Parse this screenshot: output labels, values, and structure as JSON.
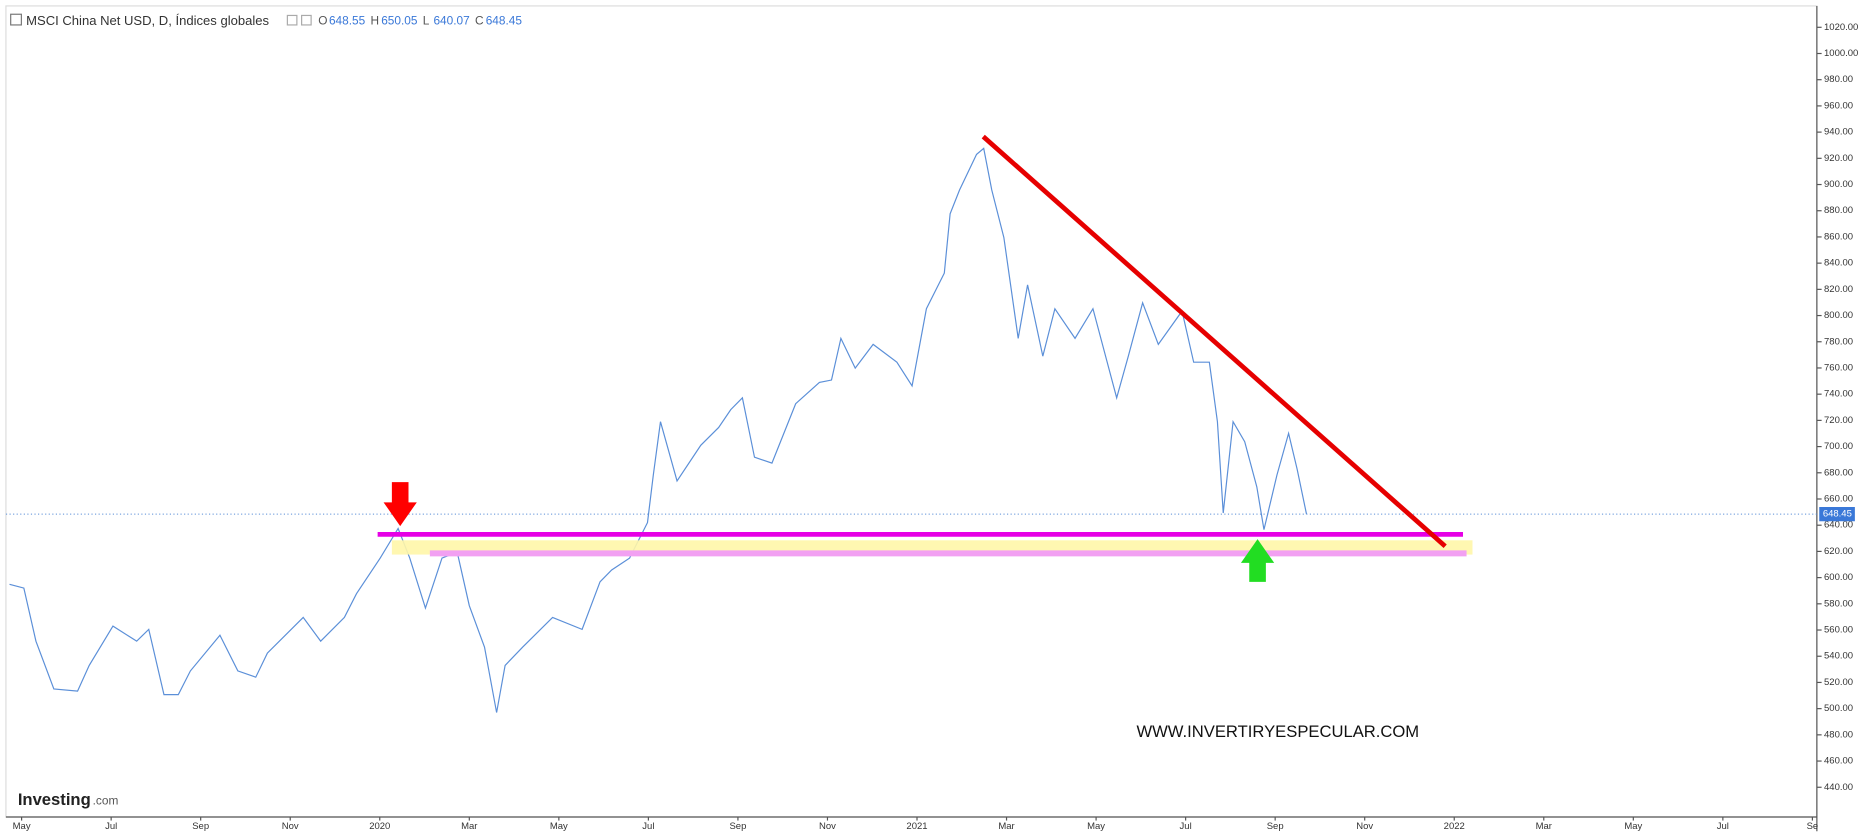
{
  "header": {
    "symbol": "MSCI China Net USD, D, Índices globales",
    "ohlc": [
      {
        "key": "O",
        "value": 648.55
      },
      {
        "key": "H",
        "value": 650.05
      },
      {
        "key": "L",
        "value": 640.07
      },
      {
        "key": "C",
        "value": 648.45
      }
    ]
  },
  "logo": {
    "name": "Investing",
    "suffix": ".com"
  },
  "watermark": "WWW.INVERTIRYESPECULAR.COM",
  "chart_data": {
    "type": "line",
    "xlim": [
      -0.35,
      40.1
    ],
    "xticks": [
      {
        "value": 0,
        "label": "May"
      },
      {
        "value": 2,
        "label": "Jul"
      },
      {
        "value": 4,
        "label": "Sep"
      },
      {
        "value": 6,
        "label": "Nov"
      },
      {
        "value": 8,
        "label": "2020"
      },
      {
        "value": 10,
        "label": "Mar"
      },
      {
        "value": 12,
        "label": "May"
      },
      {
        "value": 14,
        "label": "Jul"
      },
      {
        "value": 16,
        "label": "Sep"
      },
      {
        "value": 18,
        "label": "Nov"
      },
      {
        "value": 20,
        "label": "2021"
      },
      {
        "value": 22,
        "label": "Mar"
      },
      {
        "value": 24,
        "label": "May"
      },
      {
        "value": 26,
        "label": "Jul"
      },
      {
        "value": 28,
        "label": "Sep"
      },
      {
        "value": 30,
        "label": "Nov"
      },
      {
        "value": 32,
        "label": "2022"
      },
      {
        "value": 34,
        "label": "Mar"
      },
      {
        "value": 36,
        "label": "May"
      },
      {
        "value": 38,
        "label": "Jul"
      },
      {
        "value": 40,
        "label": "Se"
      }
    ],
    "ylim": [
      417.3,
      1036.3
    ],
    "yticks": [
      {
        "value": 440,
        "label": "440.00"
      },
      {
        "value": 460,
        "label": "460.00"
      },
      {
        "value": 480,
        "label": "480.00"
      },
      {
        "value": 500,
        "label": "500.00"
      },
      {
        "value": 520,
        "label": "520.00"
      },
      {
        "value": 540,
        "label": "540.00"
      },
      {
        "value": 560,
        "label": "560.00"
      },
      {
        "value": 580,
        "label": "580.00"
      },
      {
        "value": 600,
        "label": "600.00"
      },
      {
        "value": 620,
        "label": "620.00"
      },
      {
        "value": 640,
        "label": "640.00"
      },
      {
        "value": 660,
        "label": "660.00"
      },
      {
        "value": 680,
        "label": "680.00"
      },
      {
        "value": 700,
        "label": "700.00"
      },
      {
        "value": 720,
        "label": "720.00"
      },
      {
        "value": 740,
        "label": "740.00"
      },
      {
        "value": 760,
        "label": "760.00"
      },
      {
        "value": 780,
        "label": "780.00"
      },
      {
        "value": 800,
        "label": "800.00"
      },
      {
        "value": 820,
        "label": "820.00"
      },
      {
        "value": 840,
        "label": "840.00"
      },
      {
        "value": 860,
        "label": "860.00"
      },
      {
        "value": 880,
        "label": "880.00"
      },
      {
        "value": 900,
        "label": "900.00"
      },
      {
        "value": 920,
        "label": "920.00"
      },
      {
        "value": 940,
        "label": "940.00"
      },
      {
        "value": 960,
        "label": "960.00"
      },
      {
        "value": 980,
        "label": "980.00"
      },
      {
        "value": 1000,
        "label": "1000.00"
      },
      {
        "value": 1020,
        "label": "1020.00"
      }
    ],
    "last_price": 648.45,
    "series": [
      {
        "color": "#5b8fd8",
        "x": [
          -0.27,
          0.05,
          0.32,
          0.72,
          1.25,
          1.51,
          2.04,
          2.57,
          2.84,
          3.18,
          3.5,
          3.77,
          4.43,
          4.83,
          5.23,
          5.49,
          6.29,
          6.68,
          7.21,
          7.48,
          8.01,
          8.41,
          8.67,
          9.02,
          9.39,
          9.73,
          10,
          10.34,
          10.61,
          10.8,
          11.19,
          11.86,
          12.52,
          12.92,
          13.18,
          13.58,
          13.98,
          14.11,
          14.27,
          14.64,
          15.17,
          15.57,
          15.84,
          16.1,
          16.37,
          16.76,
          17.29,
          17.82,
          18.09,
          18.3,
          18.62,
          19.02,
          19.55,
          19.89,
          20.21,
          20.61,
          20.74,
          20.95,
          21.33,
          21.49,
          21.67,
          21.94,
          22.26,
          22.47,
          22.81,
          23.08,
          23.53,
          23.93,
          24.46,
          24.72,
          25.04,
          25.39,
          25.92,
          26.18,
          26.53,
          26.71,
          26.84,
          27.06,
          27.32,
          27.59,
          27.75,
          28.04,
          28.3,
          28.49,
          28.7
        ],
        "values": [
          594.9,
          592,
          551.5,
          515,
          513.4,
          533,
          563,
          551.5,
          560.5,
          510.7,
          510.7,
          528.8,
          556,
          528.8,
          524,
          542.4,
          569.6,
          551.5,
          569.6,
          587.7,
          614.9,
          637.5,
          614.9,
          576.8,
          614.9,
          619.4,
          578.6,
          546.9,
          497,
          533,
          546.9,
          569.6,
          560.5,
          596.8,
          605.8,
          614.9,
          642,
          678.3,
          719,
          673.8,
          701,
          714.6,
          728.2,
          737.2,
          691.9,
          687.4,
          732.7,
          749,
          750.8,
          782.6,
          759.9,
          778,
          764.4,
          746.3,
          805.2,
          832.4,
          877.7,
          895.8,
          923,
          927.6,
          895.8,
          859.6,
          782.6,
          823.4,
          769,
          805.2,
          782.6,
          805.2,
          737.2,
          769,
          809.7,
          778,
          803.4,
          764.4,
          764.4,
          719,
          649.3,
          719,
          703.7,
          669.3,
          636.6,
          678.3,
          710.1,
          682.9,
          648.45
        ]
      }
    ]
  }
}
